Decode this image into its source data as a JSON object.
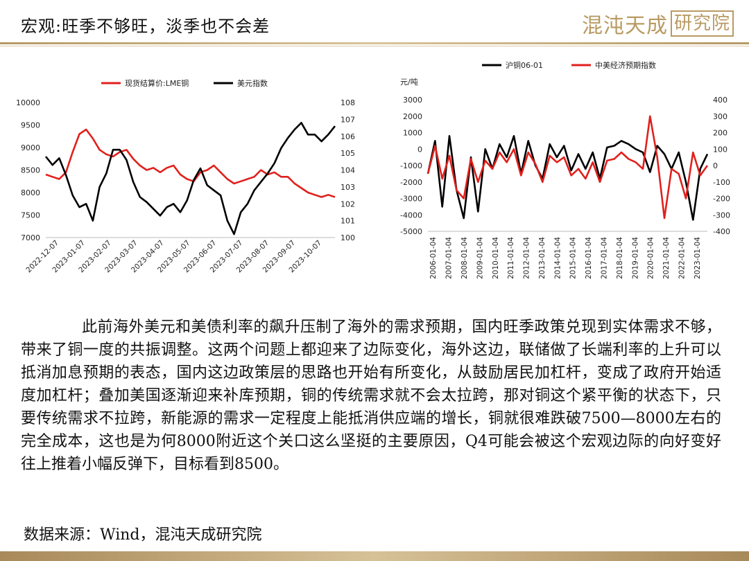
{
  "header": {
    "title": "宏观:旺季不够旺，淡季也不会差",
    "logo_text": "混沌天成",
    "logo_boxed": "研究院"
  },
  "chart_data": [
    {
      "type": "line",
      "legend_position": "top",
      "series": [
        {
          "name": "现货结算价:LME铜",
          "axis": "left",
          "color": "#e0201c",
          "values": [
            8400,
            8350,
            8300,
            8450,
            8900,
            9300,
            9400,
            9200,
            8950,
            8850,
            8800,
            8900,
            8950,
            8750,
            8600,
            8500,
            8550,
            8450,
            8550,
            8600,
            8400,
            8300,
            8250,
            8450,
            8500,
            8600,
            8450,
            8300,
            8200,
            8250,
            8300,
            8350,
            8500,
            8400,
            8450,
            8350,
            8350,
            8200,
            8100,
            8000,
            7950,
            7900,
            7950,
            7900
          ]
        },
        {
          "name": "美元指数",
          "axis": "right",
          "color": "#000000",
          "values": [
            104.8,
            104.3,
            104.7,
            103.7,
            102.5,
            101.8,
            102.0,
            101.0,
            103.0,
            103.8,
            105.2,
            105.2,
            104.6,
            103.3,
            102.4,
            102.1,
            101.7,
            101.3,
            101.8,
            102.0,
            101.5,
            102.2,
            103.4,
            104.1,
            103.1,
            102.8,
            102.5,
            101.0,
            100.2,
            101.5,
            102.0,
            102.8,
            103.3,
            103.8,
            104.4,
            105.3,
            105.9,
            106.4,
            106.8,
            106.1,
            106.1,
            105.7,
            106.1,
            106.6
          ]
        }
      ],
      "x_tick_labels": [
        "2022-12-07",
        "2023-01-07",
        "2023-02-07",
        "2023-03-07",
        "2023-04-07",
        "2023-05-07",
        "2023-06-07",
        "2023-07-07",
        "2023-08-07",
        "2023-09-07",
        "2023-10-07"
      ],
      "ylim_left": [
        7000,
        10000
      ],
      "yticks_left": [
        "7000",
        "7500",
        "8000",
        "8500",
        "9000",
        "9500",
        "10000"
      ],
      "ylim_right": [
        100,
        108
      ],
      "yticks_right": [
        "100",
        "101",
        "102",
        "103",
        "104",
        "105",
        "106",
        "107",
        "108"
      ],
      "grid": false
    },
    {
      "type": "line",
      "legend_position": "top",
      "ylabel_left": "元/吨",
      "series": [
        {
          "name": "沪铜06-01",
          "axis": "left",
          "color": "#000000",
          "values": [
            -1500,
            500,
            -3500,
            800,
            -2500,
            -4200,
            -500,
            -3800,
            0,
            -1200,
            300,
            -500,
            800,
            -1500,
            500,
            -1000,
            -1800,
            300,
            -500,
            200,
            -1300,
            -300,
            -1200,
            -200,
            -1800,
            100,
            200,
            500,
            300,
            0,
            -200,
            -1400,
            200,
            -300,
            -1200,
            -200,
            -2000,
            -4300,
            -1200,
            -300
          ]
        },
        {
          "name": "中美经济预期指数",
          "axis": "right",
          "color": "#e0201c",
          "values": [
            -50,
            120,
            -80,
            60,
            -150,
            -200,
            40,
            -100,
            30,
            -20,
            80,
            20,
            100,
            -60,
            80,
            10,
            -100,
            60,
            20,
            50,
            -60,
            -20,
            -80,
            20,
            -100,
            30,
            40,
            80,
            40,
            20,
            -20,
            300,
            50,
            -320,
            -20,
            -50,
            -200,
            80,
            -60,
            0
          ]
        }
      ],
      "x_tick_labels": [
        "2006-01-04",
        "2007-01-04",
        "2008-01-04",
        "2009-01-04",
        "2010-01-04",
        "2011-01-04",
        "2012-01-04",
        "2013-01-04",
        "2014-01-04",
        "2015-01-04",
        "2016-01-04",
        "2017-01-04",
        "2018-01-04",
        "2019-01-04",
        "2020-01-04",
        "2021-01-04",
        "2022-01-04",
        "2023-01-04"
      ],
      "ylim_left": [
        -5000,
        3000
      ],
      "yticks_left": [
        "-5000",
        "-4000",
        "-3000",
        "-2000",
        "-1000",
        "0",
        "1000",
        "2000",
        "3000"
      ],
      "ylim_right": [
        -400,
        400
      ],
      "yticks_right": [
        "-400",
        "-300",
        "-200",
        "-100",
        "0",
        "100",
        "200",
        "300",
        "400"
      ],
      "grid": false
    }
  ],
  "body": {
    "paragraph": "此前海外美元和美债利率的飙升压制了海外的需求预期，国内旺季政策兑现到实体需求不够，带来了铜一度的共振调整。这两个问题上都迎来了边际变化，海外这边，联储做了长端利率的上升可以抵消加息预期的表态，国内这边政策层的思路也开始有所变化，从鼓励居民加杠杆，变成了政府开始适度加杠杆；叠加美国逐渐迎来补库预期，铜的传统需求就不会太拉跨，那对铜这个紧平衡的状态下，只要传统需求不拉跨，新能源的需求一定程度上能抵消供应端的增长，铜就很难跌破7500—8000左右的完全成本，这也是为何8000附近这个关口这么坚挺的主要原因，Q4可能会被这个宏观边际的向好变好往上推着小幅反弹下，目标看到8500。",
    "source": "数据来源：Wind，混沌天成研究院"
  }
}
